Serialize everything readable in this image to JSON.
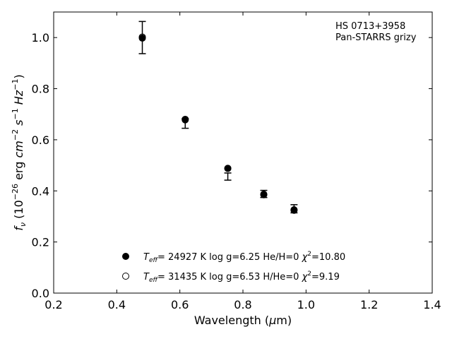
{
  "chart_data": {
    "type": "scatter",
    "annotation": [
      "HS 0713+3958",
      "Pan-STARRS grizy"
    ],
    "xlabel_parts": {
      "main": "Wavelength (",
      "mu": "μ",
      "unit": "m)"
    },
    "ylabel_parts": {
      "f": "f",
      "nu": "ν",
      "open": " (10",
      "exp1": "−26",
      "erg": " erg ",
      "cm": "cm",
      "exp2": "−2",
      "s": " s",
      "exp3": "−1",
      "hz": " Hz",
      "exp4": "−1",
      "close": ")"
    },
    "xlim": [
      0.2,
      1.4
    ],
    "ylim": [
      0.0,
      1.1
    ],
    "xticks": [
      "0.2",
      "0.4",
      "0.6",
      "0.8",
      "1.0",
      "1.2",
      "1.4"
    ],
    "xtick_values": [
      0.2,
      0.4,
      0.6,
      0.8,
      1.0,
      1.2,
      1.4
    ],
    "yticks": [
      "0.0",
      "0.2",
      "0.4",
      "0.6",
      "0.8",
      "1.0"
    ],
    "ytick_values": [
      0.0,
      0.2,
      0.4,
      0.6,
      0.8,
      1.0
    ],
    "grid": false,
    "legend_position": "bottom-center",
    "observed": {
      "x": [
        0.481,
        0.617,
        0.752,
        0.866,
        0.962
      ],
      "y": [
        1.0,
        0.664,
        0.456,
        0.388,
        0.33
      ],
      "err": [
        0.063,
        0.019,
        0.014,
        0.014,
        0.016
      ]
    },
    "series": [
      {
        "marker": "filled",
        "label_parts": {
          "t": "T",
          "sub": "eff",
          "rest1": "= 24927 K  log g=6.25  He/H=0  ",
          "chi": "χ",
          "sup": "2",
          "rest2": "=10.80"
        },
        "x": [
          0.481,
          0.617,
          0.752,
          0.866,
          0.962
        ],
        "y": [
          0.998,
          0.678,
          0.488,
          0.385,
          0.324
        ]
      },
      {
        "marker": "open",
        "label_parts": {
          "t": "T",
          "sub": "eff",
          "rest1": "= 31435 K  log g=6.53  H/He=0  ",
          "chi": "χ",
          "sup": "2",
          "rest2": "=9.19"
        },
        "x": [
          0.481,
          0.617,
          0.752,
          0.866,
          0.962
        ],
        "y": [
          1.002,
          0.68,
          0.488,
          0.387,
          0.326
        ]
      }
    ],
    "colors": {
      "marker": "#000000",
      "axes": "#000000",
      "background": "#ffffff"
    }
  }
}
